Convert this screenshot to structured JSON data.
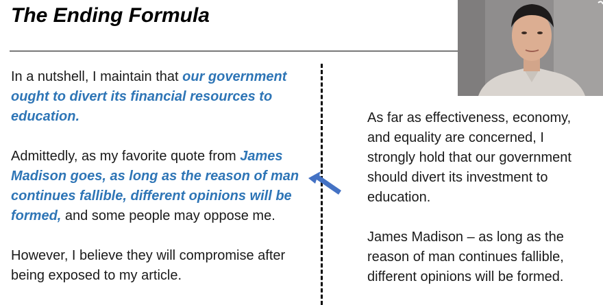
{
  "slide": {
    "title": "The Ending Formula"
  },
  "left_column": {
    "p1": {
      "plain": "In a nutshell, I maintain that ",
      "highlight": "our government ought to divert its financial resources to education."
    },
    "p2": {
      "plain_before": "Admittedly, as my favorite quote from ",
      "highlight": "James Madison goes, as long as the reason of man continues fallible, different opinions will be formed,",
      "plain_after": " and some people may oppose me."
    },
    "p3": {
      "plain": "However, I believe they will compromise after being exposed to my article."
    }
  },
  "right_column": {
    "p1": "As far as effectiveness, economy, and equality are concerned, I strongly hold that our government should divert its investment to education.",
    "p2": "James Madison – as long as the reason of man continues fallible, different opinions will be formed."
  },
  "colors": {
    "highlight": "#2e75b6",
    "arrow_fill": "#4472c4"
  }
}
